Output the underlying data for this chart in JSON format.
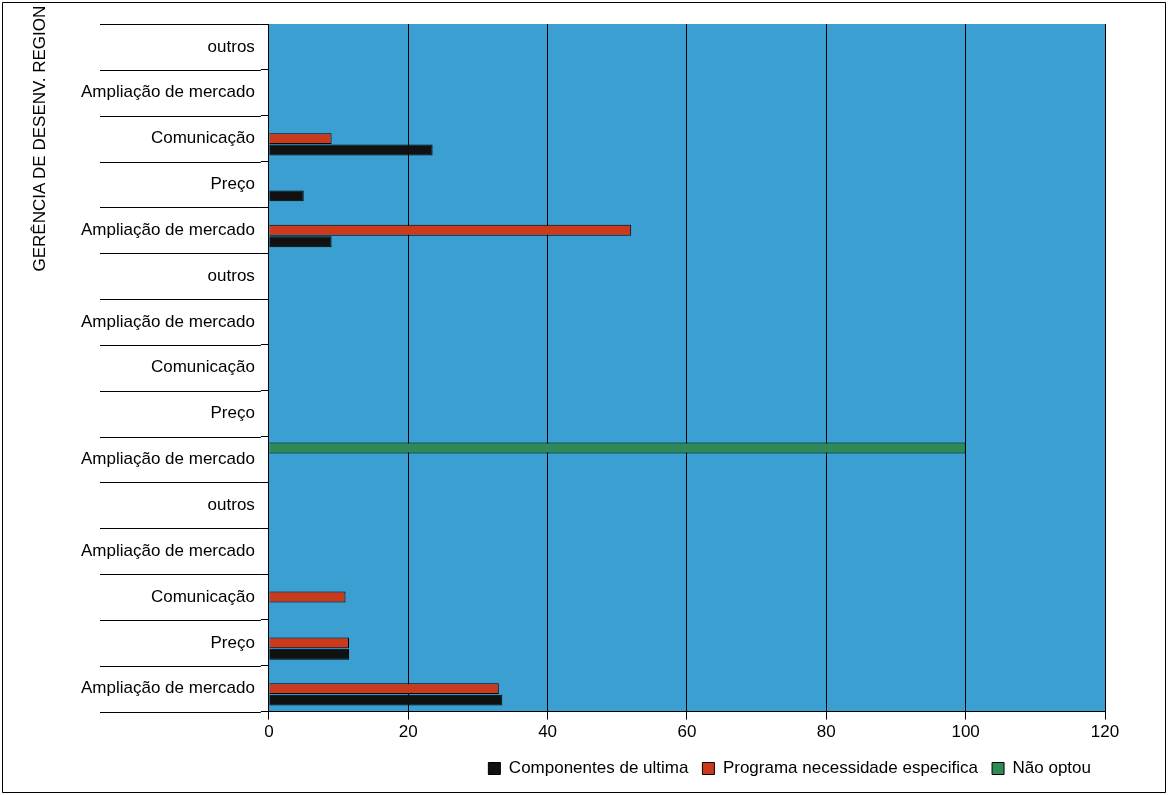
{
  "chart_data": {
    "type": "bar",
    "orientation": "horizontal",
    "categories": [
      "outros",
      "Ampliação de mercado",
      "Comunicação",
      "Preço",
      "Ampliação de mercado",
      "outros",
      "Ampliação de mercado",
      "Comunicação",
      "Preço",
      "Ampliação de mercado",
      "outros",
      "Ampliação de mercado",
      "Comunicação",
      "Preço",
      "Ampliação de mercado"
    ],
    "series": [
      {
        "name": "Componentes de ultima",
        "color": "#111111",
        "values": [
          null,
          null,
          23.5,
          5,
          9,
          null,
          null,
          null,
          null,
          null,
          null,
          null,
          null,
          11.5,
          33.5
        ]
      },
      {
        "name": "Programa necessidade especifica",
        "color": "#cc3a1e",
        "values": [
          null,
          null,
          9,
          null,
          52,
          null,
          null,
          null,
          null,
          null,
          null,
          null,
          11,
          11.5,
          33
        ]
      },
      {
        "name": "Não optou",
        "color": "#2e8b57",
        "values": [
          null,
          null,
          null,
          null,
          null,
          null,
          null,
          null,
          null,
          100,
          null,
          null,
          null,
          null,
          null
        ]
      }
    ],
    "xlim": [
      0,
      120
    ],
    "xticks": [
      0,
      20,
      40,
      60,
      80,
      100,
      120
    ],
    "grid": "x",
    "legend": "bottom right",
    "annotations": [
      "GERÊNCIA DE DESENV. REGION"
    ]
  }
}
